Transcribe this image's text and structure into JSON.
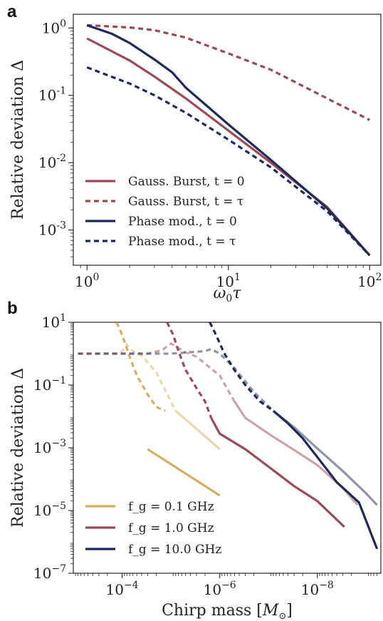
{
  "chart_data": [
    {
      "panel": "a",
      "type": "line",
      "xlabel": "ω₀τ",
      "ylabel": "Relative deviation Δ",
      "xscale": "log",
      "yscale": "log",
      "xlim": [
        0.8,
        120
      ],
      "ylim": [
        0.0003,
        1.6
      ],
      "xticks": [
        {
          "value": 1,
          "base": "10",
          "exp": "0"
        },
        {
          "value": 10,
          "base": "10",
          "exp": "1"
        },
        {
          "value": 100,
          "base": "10",
          "exp": "2"
        }
      ],
      "yticks": [
        {
          "value": 0.001,
          "base": "10",
          "exp": "-3"
        },
        {
          "value": 0.01,
          "base": "10",
          "exp": "-2"
        },
        {
          "value": 0.1,
          "base": "10",
          "exp": "-1"
        },
        {
          "value": 1,
          "base": "10",
          "exp": "0"
        }
      ],
      "legend_position": "lower-left",
      "series": [
        {
          "name": "Gauss. Burst, t = 0",
          "color": "#9c4a55",
          "dash": "solid",
          "x": [
            1,
            1.5,
            2,
            3,
            5,
            10,
            20,
            50,
            100
          ],
          "y": [
            0.7,
            0.45,
            0.33,
            0.19,
            0.09,
            0.03,
            0.01,
            0.0022,
            0.00042
          ]
        },
        {
          "name": "Gauss. Burst, t = τ",
          "color": "#9c4a55",
          "dash": "dashed",
          "x": [
            1,
            2,
            3,
            5,
            10,
            20,
            50,
            100
          ],
          "y": [
            1.1,
            1.02,
            0.93,
            0.72,
            0.42,
            0.24,
            0.09,
            0.043
          ]
        },
        {
          "name": "Phase mod., t = 0",
          "color": "#1f2a5c",
          "dash": "solid",
          "x": [
            1,
            1.5,
            2,
            3,
            4,
            5,
            10,
            20,
            50,
            100
          ],
          "y": [
            1.1,
            0.82,
            0.6,
            0.34,
            0.22,
            0.13,
            0.037,
            0.011,
            0.0021,
            0.00042
          ]
        },
        {
          "name": "Phase mod., t = τ",
          "color": "#1f2a5c",
          "dash": "dashed",
          "x": [
            1,
            2,
            3,
            5,
            10,
            20,
            50,
            100
          ],
          "y": [
            0.26,
            0.15,
            0.1,
            0.055,
            0.022,
            0.0085,
            0.0019,
            0.00042
          ]
        }
      ]
    },
    {
      "panel": "b",
      "type": "line",
      "xlabel": "Chirp mass [M⊙]",
      "ylabel": "Relative deviation Δ",
      "xscale": "log",
      "xaxis_inverted": true,
      "yscale": "log",
      "xlim": [
        0.001,
        5e-10
      ],
      "ylim": [
        1e-07,
        10
      ],
      "xticks": [
        {
          "value": 0.0001,
          "base": "10",
          "exp": "−4"
        },
        {
          "value": 1e-06,
          "base": "10",
          "exp": "−6"
        },
        {
          "value": 1e-08,
          "base": "10",
          "exp": "−8"
        }
      ],
      "yticks": [
        {
          "value": 1e-07,
          "base": "10",
          "exp": "−7"
        },
        {
          "value": 1e-05,
          "base": "10",
          "exp": "−5"
        },
        {
          "value": 0.001,
          "base": "10",
          "exp": "−3"
        },
        {
          "value": 0.1,
          "base": "10",
          "exp": "−1"
        },
        {
          "value": 10,
          "base": "10",
          "exp": "1"
        }
      ],
      "legend_position": "lower-left",
      "series": [
        {
          "name": "f_g = 0.1 GHz",
          "color": "#d4b060",
          "dash": "solid",
          "x": [
            3e-05,
            1e-05,
            3e-06,
            1e-06
          ],
          "y": [
            0.0009,
            0.0003,
            9e-05,
            3e-05
          ]
        },
        {
          "name": "f_g = 1.0 GHz",
          "color": "#9c4a55",
          "dash": "solid",
          "x": [
            1.5e-06,
            1e-06,
            3e-07,
            1e-07,
            3e-08,
            1e-08,
            2.8e-09
          ],
          "y": [
            0.009,
            0.0028,
            0.0009,
            0.00025,
            6e-05,
            2e-05,
            3e-06
          ]
        },
        {
          "name": "f_g = 10.0 GHz",
          "color": "#1f2a5c",
          "dash": "solid",
          "x": [
            8e-08,
            4e-08,
            2e-08,
            1e-08,
            4e-09,
            1.4e-09,
            6e-10
          ],
          "y": [
            0.015,
            0.006,
            0.002,
            0.0005,
            8e-05,
            1.8e-05,
            6e-07
          ]
        }
      ],
      "extra_curves": [
        {
          "color": "#d4b060",
          "dash": "solid",
          "opacity": 0.5,
          "x": [
            8e-06,
            5e-06,
            3e-06,
            1e-06
          ],
          "y": [
            0.015,
            0.008,
            0.004,
            0.0009
          ]
        },
        {
          "color": "#d4b060",
          "dash": "dashed",
          "opacity": 1,
          "x": [
            0.00013,
            0.0001,
            7e-05,
            5e-05,
            3e-05,
            2e-05,
            1.3e-05
          ],
          "y": [
            10,
            4,
            0.8,
            0.2,
            0.05,
            0.02,
            0.015
          ]
        },
        {
          "color": "#d4b060",
          "dash": "dashed",
          "opacity": 0.5,
          "x": [
            0.0008,
            0.0002,
            0.00013,
            0.0001,
            8e-05,
            6e-05,
            4e-05,
            2e-05,
            8e-06
          ],
          "y": [
            1,
            1,
            1,
            1.2,
            2,
            1.2,
            0.9,
            0.25,
            0.015
          ]
        },
        {
          "color": "#9c4a55",
          "dash": "solid",
          "opacity": 0.5,
          "x": [
            5e-07,
            3e-07,
            1e-07,
            3e-08,
            1e-08,
            3e-09,
            1.5e-09
          ],
          "y": [
            0.03,
            0.009,
            0.0028,
            0.00085,
            0.00028,
            5.2e-05,
            1.5e-05
          ]
        },
        {
          "color": "#9c4a55",
          "dash": "dashed",
          "opacity": 1,
          "x": [
            1.2e-05,
            9e-06,
            7e-06,
            5e-06,
            3e-06,
            2e-06,
            1.5e-06
          ],
          "y": [
            10,
            4,
            1.2,
            0.3,
            0.08,
            0.03,
            0.009
          ]
        },
        {
          "color": "#9c4a55",
          "dash": "dashed",
          "opacity": 0.5,
          "x": [
            0.0008,
            0.0001,
            3e-05,
            1.5e-05,
            1e-05,
            7e-06,
            5e-06,
            3e-06,
            1e-06,
            5e-07
          ],
          "y": [
            1,
            1,
            1,
            1.3,
            2.1,
            1.5,
            1.1,
            0.8,
            0.2,
            0.03
          ]
        },
        {
          "color": "#1f2a5c",
          "dash": "solid",
          "opacity": 0.5,
          "x": [
            8e-08,
            3e-08,
            1e-08,
            3e-09,
            1e-09,
            6e-10
          ],
          "y": [
            0.015,
            0.0045,
            0.00095,
            0.00018,
            3.5e-05,
            1.5e-05
          ]
        },
        {
          "color": "#1f2a5c",
          "dash": "dashed",
          "opacity": 1,
          "x": [
            1.6e-06,
            1.2e-06,
            8e-07,
            5e-07,
            3e-07,
            1.5e-07,
            8e-08
          ],
          "y": [
            10,
            4,
            1,
            0.3,
            0.1,
            0.03,
            0.015
          ]
        },
        {
          "color": "#1f2a5c",
          "dash": "dashed",
          "opacity": 0.5,
          "x": [
            0.0008,
            0.0001,
            1e-05,
            2e-06,
            1.5e-06,
            1e-06,
            5e-07,
            2e-07,
            8e-08
          ],
          "y": [
            1,
            1,
            1,
            1.2,
            1.4,
            1.0,
            0.35,
            0.06,
            0.015
          ]
        }
      ]
    }
  ]
}
